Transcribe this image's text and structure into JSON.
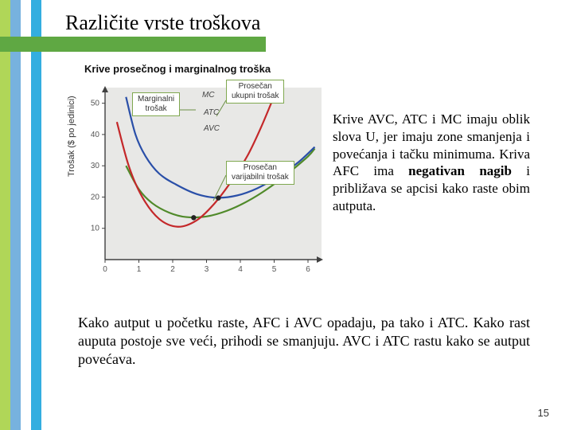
{
  "stripes": [
    "#b0d658",
    "#77b2de",
    "#ffffff",
    "#33aee0"
  ],
  "header_band_color": "#5fa843",
  "title": "Različite vrste troškova",
  "chart": {
    "title": "Krive prosečnog i marginalnog troška",
    "y_axis_label": "Trošak ($ po jedinici)",
    "x_ticks": [
      "0",
      "1",
      "2",
      "3",
      "4",
      "5",
      "6"
    ],
    "y_ticks": [
      "10",
      "20",
      "30",
      "40",
      "50"
    ],
    "xlim": [
      0,
      6.4
    ],
    "ylim": [
      0,
      55
    ],
    "background_color": "#e8e8e6",
    "axis_color": "#404040",
    "curves": {
      "mc": {
        "color": "#c4282a",
        "label": "MC",
        "points": [
          [
            0.35,
            44
          ],
          [
            0.7,
            30
          ],
          [
            1.1,
            20
          ],
          [
            1.6,
            13
          ],
          [
            2.15,
            10.5
          ],
          [
            2.7,
            12.5
          ],
          [
            3.2,
            17.5
          ],
          [
            3.7,
            24.5
          ],
          [
            4.2,
            33
          ],
          [
            4.6,
            42
          ],
          [
            4.95,
            51
          ]
        ]
      },
      "atc": {
        "color": "#2a4fa8",
        "label": "ATC",
        "points": [
          [
            0.62,
            52
          ],
          [
            0.9,
            40
          ],
          [
            1.2,
            33
          ],
          [
            1.6,
            27.5
          ],
          [
            2.1,
            24
          ],
          [
            2.7,
            21
          ],
          [
            3.3,
            19.8
          ],
          [
            3.9,
            20.5
          ],
          [
            4.5,
            22.8
          ],
          [
            5.1,
            26.5
          ],
          [
            5.7,
            31
          ],
          [
            6.2,
            36
          ]
        ]
      },
      "avc": {
        "color": "#508a2a",
        "label": "AVC",
        "points": [
          [
            0.62,
            30
          ],
          [
            1.0,
            22.5
          ],
          [
            1.4,
            18
          ],
          [
            1.9,
            15
          ],
          [
            2.4,
            13.6
          ],
          [
            3.0,
            13.8
          ],
          [
            3.6,
            15.6
          ],
          [
            4.2,
            18.6
          ],
          [
            4.8,
            22.6
          ],
          [
            5.4,
            27.5
          ],
          [
            6.0,
            33
          ],
          [
            6.2,
            35.5
          ]
        ]
      }
    },
    "min_points": [
      {
        "x": 2.62,
        "y": 13.4
      },
      {
        "x": 3.35,
        "y": 19.7
      }
    ],
    "label_boxes": {
      "marginal": {
        "text_l1": "Marginalni",
        "text_l2": "trošak",
        "border": "#80a850"
      },
      "atc_box": {
        "text_l1": "Prosečan",
        "text_l2": "ukupni trošak",
        "border": "#80a850"
      },
      "avc_box": {
        "text_l1": "Prosečan",
        "text_l2": "varijabilni trošak",
        "border": "#80a850"
      }
    }
  },
  "right_paragraph": "Krive AVC, ATC i MC imaju oblik slova U, jer imaju zone smanjenja i povećanja i tačku minimuma. Kriva AFC ima <b>negativan nagib</b> i približava se apcisi kako raste obim autputa.",
  "bottom_paragraph": "Kako autput u početku raste, AFC i AVC opadaju, pa tako i ATC. Kako rast auputa postoje sve veći, prihodi se smanjuju. AVC i ATC rastu kako se autput povećava.",
  "page_number": "15"
}
